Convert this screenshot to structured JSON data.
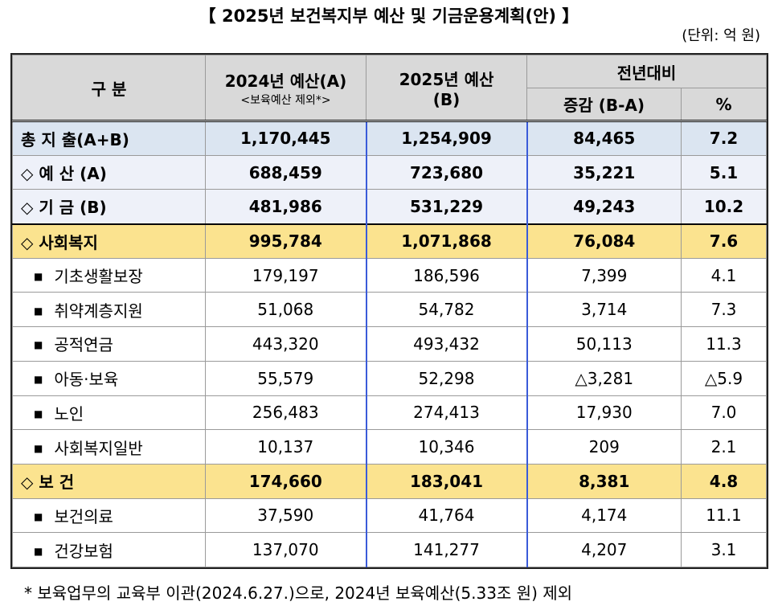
{
  "header": {
    "title": "【 2025년 보건복지부 예산 및 기금운용계획(안) 】",
    "unit": "(단위: 억 원)"
  },
  "table": {
    "head": {
      "label": "구 분",
      "col1": "2024년 예산(A)",
      "col1_note": "<보육예산 제외*>",
      "col2": "2025년 예산",
      "col2_note": "(B)",
      "group": "전년대비",
      "col3": "증감 (B-A)",
      "col4": "%"
    },
    "summary": [
      {
        "label": "총 지 출(A+B)",
        "cells": [
          "1,170,445",
          "1,254,909",
          "84,465",
          "7.2"
        ]
      },
      {
        "label": "◇ 예 산 (A)",
        "cells": [
          "688,459",
          "723,680",
          "35,221",
          "5.1"
        ]
      },
      {
        "label": "◇ 기 금 (B)",
        "cells": [
          "481,986",
          "531,229",
          "49,243",
          "10.2"
        ]
      }
    ],
    "sections": [
      {
        "head": {
          "label": "◇ 사회복지",
          "cells": [
            "995,784",
            "1,071,868",
            "76,084",
            "7.6"
          ]
        },
        "items": [
          {
            "label": "기초생활보장",
            "cells": [
              "179,197",
              "186,596",
              "7,399",
              "4.1"
            ]
          },
          {
            "label": "취약계층지원",
            "cells": [
              "51,068",
              "54,782",
              "3,714",
              "7.3"
            ]
          },
          {
            "label": "공적연금",
            "cells": [
              "443,320",
              "493,432",
              "50,113",
              "11.3"
            ]
          },
          {
            "label": "아동·보육",
            "cells": [
              "55,579",
              "52,298",
              "△3,281",
              "△5.9"
            ]
          },
          {
            "label": "노인",
            "cells": [
              "256,483",
              "274,413",
              "17,930",
              "7.0"
            ]
          },
          {
            "label": "사회복지일반",
            "cells": [
              "10,137",
              "10,346",
              "209",
              "2.1"
            ]
          }
        ]
      },
      {
        "head": {
          "label": "◇ 보 건",
          "cells": [
            "174,660",
            "183,041",
            "8,381",
            "4.8"
          ]
        },
        "items": [
          {
            "label": "보건의료",
            "cells": [
              "37,590",
              "41,764",
              "4,174",
              "11.1"
            ]
          },
          {
            "label": "건강보험",
            "cells": [
              "137,070",
              "141,277",
              "4,207",
              "3.1"
            ]
          }
        ]
      }
    ]
  },
  "footnote": "* 보육업무의 교육부 이관(2024.6.27.)으로, 2024년 보육예산(5.33조 원) 제외"
}
